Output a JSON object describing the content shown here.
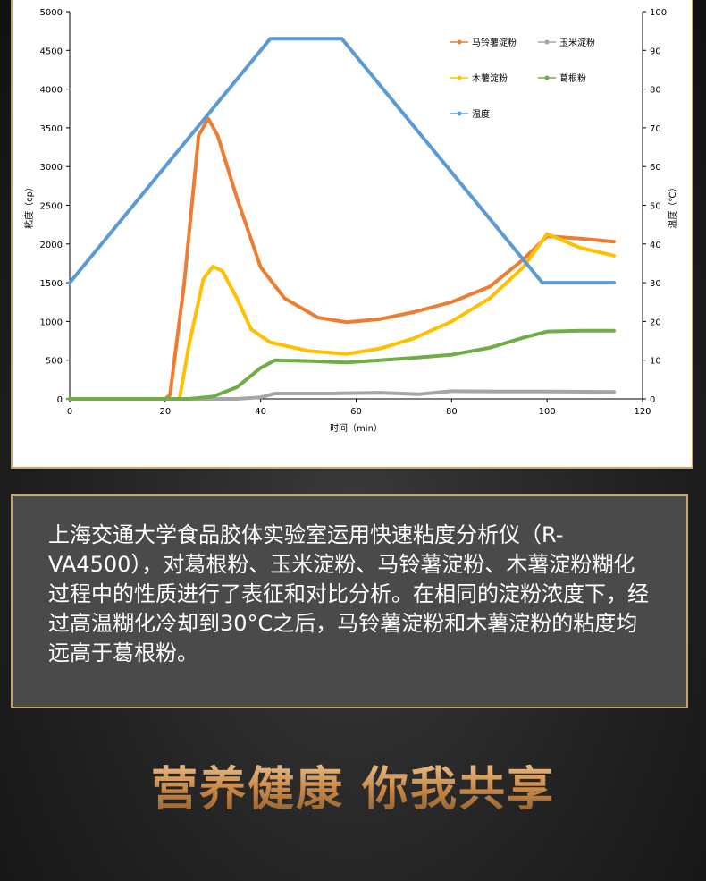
{
  "chart_data": {
    "type": "line",
    "xlabel": "时间（min）",
    "ylabel": "粘度（cp）",
    "y2label": "温度（℃）",
    "xlim": [
      0,
      120
    ],
    "ylim": [
      0,
      5000
    ],
    "y2lim": [
      0,
      100
    ],
    "xticks": [
      0,
      20,
      40,
      60,
      80,
      100,
      120
    ],
    "yticks": [
      0,
      500,
      1000,
      1500,
      2000,
      2500,
      3000,
      3500,
      4000,
      4500,
      5000
    ],
    "y2ticks": [
      0,
      10,
      20,
      30,
      40,
      50,
      60,
      70,
      80,
      90,
      100
    ],
    "grid": false,
    "legend_position": "top-right",
    "series": [
      {
        "name": "马铃薯淀粉",
        "color": "#ed7d31",
        "axis": "left",
        "points": [
          [
            0,
            0
          ],
          [
            20,
            0
          ],
          [
            21,
            50
          ],
          [
            24,
            1500
          ],
          [
            27,
            3400
          ],
          [
            29,
            3620
          ],
          [
            31,
            3400
          ],
          [
            35,
            2600
          ],
          [
            40,
            1700
          ],
          [
            45,
            1300
          ],
          [
            52,
            1050
          ],
          [
            58,
            990
          ],
          [
            65,
            1030
          ],
          [
            72,
            1120
          ],
          [
            80,
            1250
          ],
          [
            88,
            1450
          ],
          [
            95,
            1800
          ],
          [
            100,
            2100
          ],
          [
            107,
            2070
          ],
          [
            114,
            2030
          ]
        ]
      },
      {
        "name": "玉米淀粉",
        "color": "#a5a5a5",
        "axis": "left",
        "points": [
          [
            0,
            0
          ],
          [
            35,
            0
          ],
          [
            40,
            20
          ],
          [
            43,
            70
          ],
          [
            55,
            70
          ],
          [
            65,
            80
          ],
          [
            73,
            60
          ],
          [
            80,
            100
          ],
          [
            90,
            95
          ],
          [
            100,
            95
          ],
          [
            114,
            90
          ]
        ]
      },
      {
        "name": "木薯淀粉",
        "color": "#ffc000",
        "axis": "left",
        "points": [
          [
            0,
            0
          ],
          [
            23,
            0
          ],
          [
            25,
            700
          ],
          [
            28,
            1550
          ],
          [
            30,
            1710
          ],
          [
            32,
            1650
          ],
          [
            35,
            1300
          ],
          [
            38,
            900
          ],
          [
            42,
            730
          ],
          [
            50,
            620
          ],
          [
            58,
            580
          ],
          [
            65,
            650
          ],
          [
            72,
            780
          ],
          [
            80,
            1000
          ],
          [
            88,
            1300
          ],
          [
            95,
            1700
          ],
          [
            100,
            2130
          ],
          [
            107,
            1950
          ],
          [
            114,
            1850
          ]
        ]
      },
      {
        "name": "葛根粉",
        "color": "#70ad47",
        "axis": "left",
        "points": [
          [
            0,
            0
          ],
          [
            25,
            0
          ],
          [
            30,
            30
          ],
          [
            35,
            150
          ],
          [
            40,
            400
          ],
          [
            43,
            500
          ],
          [
            50,
            490
          ],
          [
            58,
            470
          ],
          [
            65,
            500
          ],
          [
            72,
            530
          ],
          [
            80,
            570
          ],
          [
            88,
            660
          ],
          [
            95,
            790
          ],
          [
            100,
            870
          ],
          [
            107,
            880
          ],
          [
            114,
            880
          ]
        ]
      },
      {
        "name": "温度",
        "color": "#5b9bd5",
        "axis": "right",
        "points": [
          [
            0,
            30
          ],
          [
            42,
            93
          ],
          [
            57,
            93
          ],
          [
            99,
            30
          ],
          [
            114,
            30
          ]
        ]
      }
    ]
  },
  "description": {
    "text": "上海交通大学食品胶体实验室运用快速粘度分析仪（R-VA4500），对葛根粉、玉米淀粉、马铃薯淀粉、木薯淀粉糊化过程中的性质进行了表征和对比分析。在相同的淀粉浓度下，经过高温糊化冷却到30°C之后，马铃薯淀粉和木薯淀粉的粘度均远高于葛根粉。"
  },
  "slogan": "营养健康 你我共享"
}
